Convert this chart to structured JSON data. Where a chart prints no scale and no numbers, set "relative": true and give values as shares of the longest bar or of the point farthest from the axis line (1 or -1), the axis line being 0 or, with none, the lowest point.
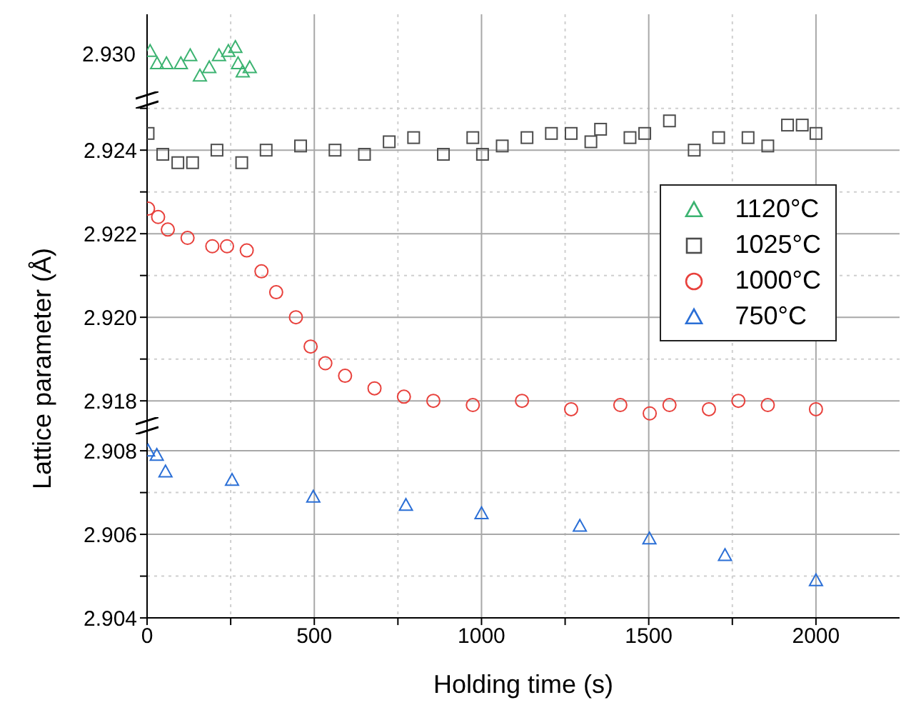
{
  "chart_data": [
    {
      "type": "scatter",
      "xticks": [
        0,
        {
          "value": 250,
          "label": null
        },
        500,
        {
          "value": 750,
          "label": null
        },
        1000,
        {
          "value": 1250,
          "label": null
        },
        1500,
        {
          "value": 1750,
          "label": null
        },
        2000
      ],
      "relative": true,
      "annotations": [
        "2.930"
      ],
      "grid": "x",
      "tick_labels": false,
      "series": [
        {
          "name": "1120°C",
          "color": "#3cb371",
          "marker": "triangle",
          "x": [
            9,
            30,
            58,
            101,
            129,
            158,
            186,
            215,
            243,
            264,
            272,
            286,
            307
          ],
          "values": [
            0.86,
            0.43,
            0.43,
            0.43,
            0.71,
            0,
            0.29,
            0.71,
            0.86,
            1,
            0.43,
            0.14,
            0.29
          ]
        }
      ]
    },
    {
      "type": "scatter",
      "xticks": [
        0,
        {
          "value": 250,
          "label": null
        },
        500,
        {
          "value": 750,
          "label": null
        },
        1000,
        {
          "value": 1250,
          "label": null
        },
        1500,
        {
          "value": 1750,
          "label": null
        },
        2000
      ],
      "ylim": [
        2.9174,
        2.9252
      ],
      "yticks": [
        {
          "value": 2.918,
          "label": "2.918"
        },
        {
          "value": 2.919,
          "label": null
        },
        {
          "value": 2.92,
          "label": "2.920"
        },
        {
          "value": 2.921,
          "label": null
        },
        {
          "value": 2.922,
          "label": "2.922"
        },
        {
          "value": 2.923,
          "label": null
        },
        {
          "value": 2.924,
          "label": "2.924"
        },
        {
          "value": 2.925,
          "label": null
        }
      ],
      "grid": true,
      "tick_labels": "y",
      "ylabel": "Lattice parameter (Å)",
      "legend": "right",
      "series": [
        {
          "name": "1025°C",
          "color": "#4d4d4d",
          "marker": "square",
          "x": [
            3,
            47,
            92,
            136,
            209,
            283,
            356,
            459,
            562,
            650,
            724,
            797,
            886,
            974,
            1003,
            1062,
            1136,
            1209,
            1268,
            1327,
            1356,
            1444,
            1488,
            1562,
            1636,
            1709,
            1797,
            1856,
            1915,
            1959,
            2000
          ],
          "values": [
            2.9244,
            2.9239,
            2.9237,
            2.9237,
            2.924,
            2.9237,
            2.924,
            2.9241,
            2.924,
            2.9239,
            2.9242,
            2.9243,
            2.9239,
            2.9243,
            2.9239,
            2.9241,
            2.9243,
            2.9244,
            2.9244,
            2.9242,
            2.9245,
            2.9243,
            2.9244,
            2.9247,
            2.924,
            2.9243,
            2.9243,
            2.9241,
            2.9246,
            2.9246,
            2.9244
          ]
        },
        {
          "name": "1000°C",
          "color": "#e8413c",
          "marker": "circle",
          "x": [
            3,
            33,
            62,
            121,
            195,
            239,
            298,
            342,
            386,
            445,
            489,
            533,
            592,
            680,
            768,
            856,
            974,
            1121,
            1268,
            1415,
            1503,
            1562,
            1680,
            1768,
            1856,
            2000
          ],
          "values": [
            2.9226,
            2.9224,
            2.9221,
            2.9219,
            2.9217,
            2.9217,
            2.9216,
            2.9211,
            2.9206,
            2.92,
            2.9193,
            2.9189,
            2.9186,
            2.9183,
            2.9181,
            2.918,
            2.9179,
            2.918,
            2.9178,
            2.9179,
            2.9177,
            2.9179,
            2.9178,
            2.918,
            2.9179,
            2.9178
          ]
        }
      ]
    },
    {
      "type": "scatter",
      "xlim": [
        0,
        2250
      ],
      "xticks": [
        0,
        {
          "value": 250,
          "label": null
        },
        500,
        {
          "value": 750,
          "label": null
        },
        1000,
        {
          "value": 1250,
          "label": null
        },
        1500,
        {
          "value": 1750,
          "label": null
        },
        2000
      ],
      "ylim": [
        2.904,
        2.9086
      ],
      "yticks": [
        {
          "value": 2.904,
          "label": "2.904"
        },
        {
          "value": 2.905,
          "label": null
        },
        {
          "value": 2.906,
          "label": "2.906"
        },
        {
          "value": 2.907,
          "label": null
        },
        {
          "value": 2.908,
          "label": "2.908"
        }
      ],
      "grid": true,
      "xlabel": "Holding time (s)",
      "series": [
        {
          "name": "750°C",
          "color": "#2b6fd6",
          "marker": "triangle",
          "x": [
            3,
            29,
            55,
            254,
            497,
            774,
            1000,
            1294,
            1502,
            1728,
            2000
          ],
          "values": [
            2.908,
            2.9079,
            2.9075,
            2.9073,
            2.9069,
            2.9067,
            2.9065,
            2.9062,
            2.9059,
            2.9055,
            2.9049
          ]
        }
      ]
    }
  ]
}
